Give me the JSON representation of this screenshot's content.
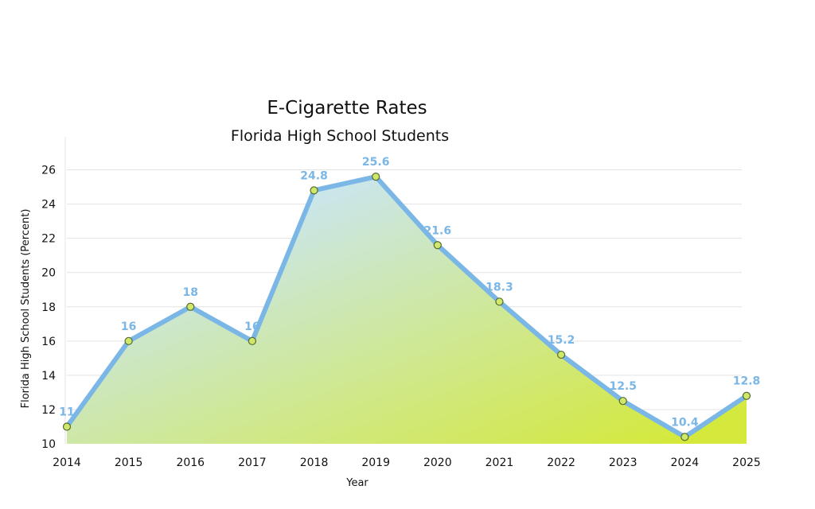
{
  "chart_data": {
    "type": "area",
    "title": "E-Cigarette Rates",
    "subtitle": "Florida High School Students",
    "xlabel": "Year",
    "ylabel": "Florida High School Students (Percent)",
    "categories": [
      "2014",
      "2015",
      "2016",
      "2017",
      "2018",
      "2019",
      "2020",
      "2021",
      "2022",
      "2023",
      "2024",
      "2025"
    ],
    "values": [
      11,
      16,
      18,
      16,
      24.8,
      25.6,
      21.6,
      18.3,
      15.2,
      12.5,
      10.4,
      12.8
    ],
    "data_labels": [
      "11",
      "16",
      "18",
      "16",
      "24.8",
      "25.6",
      "21.6",
      "18.3",
      "15.2",
      "12.5",
      "10.4",
      "12.8"
    ],
    "ylim": [
      10,
      27
    ],
    "yticks": [
      10,
      12,
      14,
      16,
      18,
      20,
      22,
      24,
      26
    ],
    "grid": true,
    "legend": "none",
    "colors": {
      "line": "#7ab6e6",
      "label": "#7ab6e6",
      "fill_top": "#c9e6fb",
      "fill_bottom": "#d4e93b",
      "marker": "#cfe86a",
      "marker_stroke": "#556b2f",
      "grid": "#e3e3e3"
    }
  }
}
